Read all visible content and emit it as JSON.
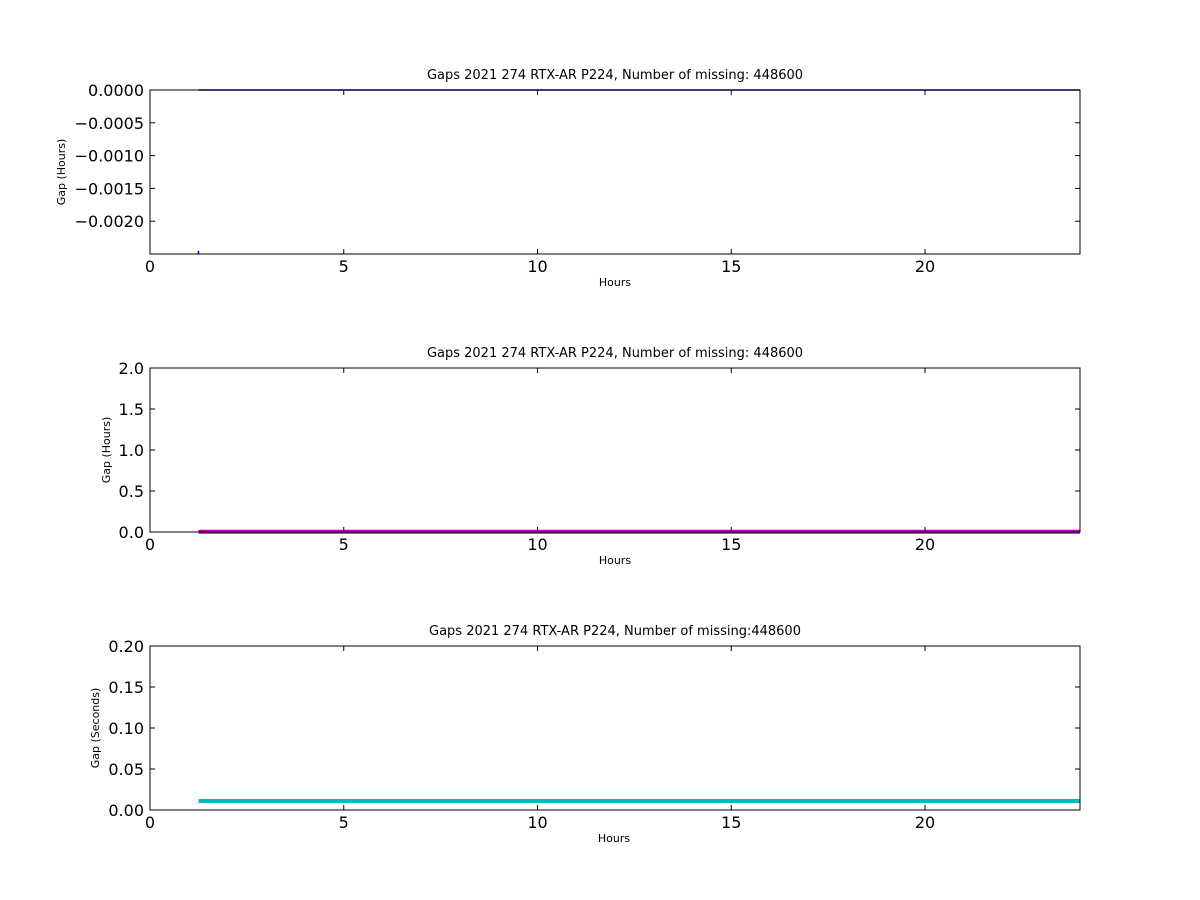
{
  "chart_data": [
    {
      "type": "line",
      "title": "Gaps 2021 274 RTX-AR  P224, Number of missing: 448600",
      "xlabel": "Hours",
      "ylabel": "Gap (Hours)",
      "xlim": [
        0,
        24
      ],
      "ylim": [
        -0.0025,
        0.0
      ],
      "xticks": [
        "0",
        "5",
        "10",
        "15",
        "20"
      ],
      "xtick_values": [
        0,
        5,
        10,
        15,
        20
      ],
      "yticks": [
        "0.0000",
        "−0.0005",
        "−0.0010",
        "−0.0015",
        "−0.0020"
      ],
      "ytick_values": [
        0.0,
        -0.0005,
        -0.001,
        -0.0015,
        -0.002
      ],
      "series": [
        {
          "color": "#0000bb",
          "width": 1.5,
          "x": [
            1.25,
            24
          ],
          "y": [
            0.0,
            0.0
          ]
        },
        {
          "color": "#0000bb",
          "width": 1.5,
          "x": [
            1.25,
            1.25
          ],
          "y": [
            -0.00245,
            -0.0025
          ]
        }
      ],
      "grid": false
    },
    {
      "type": "line",
      "title": "Gaps 2021 274 RTX-AR  P224, Number of missing: 448600",
      "xlabel": "Hours",
      "ylabel": "Gap (Hours)",
      "xlim": [
        0,
        24
      ],
      "ylim": [
        0.0,
        2.0
      ],
      "xticks": [
        "0",
        "5",
        "10",
        "15",
        "20"
      ],
      "xtick_values": [
        0,
        5,
        10,
        15,
        20
      ],
      "yticks": [
        "2.0",
        "1.5",
        "1.0",
        "0.5",
        "0.0"
      ],
      "ytick_values": [
        2.0,
        1.5,
        1.0,
        0.5,
        0.0
      ],
      "series": [
        {
          "color": "#bb00bb",
          "width": 4,
          "x": [
            1.25,
            24
          ],
          "y": [
            0.003,
            0.003
          ]
        }
      ],
      "grid": false
    },
    {
      "type": "line",
      "title": "Gaps 2021 274 RTX-AR  P224, Number of missing:448600",
      "xlabel": "Hours",
      "ylabel": "Gap (Seconds)",
      "xlim": [
        0,
        24
      ],
      "ylim": [
        0.0,
        0.2
      ],
      "xticks": [
        "0",
        "5",
        "10",
        "15",
        "20"
      ],
      "xtick_values": [
        0,
        5,
        10,
        15,
        20
      ],
      "yticks": [
        "0.20",
        "0.15",
        "0.10",
        "0.05",
        "0.00"
      ],
      "ytick_values": [
        0.2,
        0.15,
        0.1,
        0.05,
        0.0
      ],
      "series": [
        {
          "color": "#00bbbb",
          "width": 4,
          "x": [
            1.25,
            24
          ],
          "y": [
            0.011,
            0.011
          ]
        }
      ],
      "grid": false
    }
  ]
}
